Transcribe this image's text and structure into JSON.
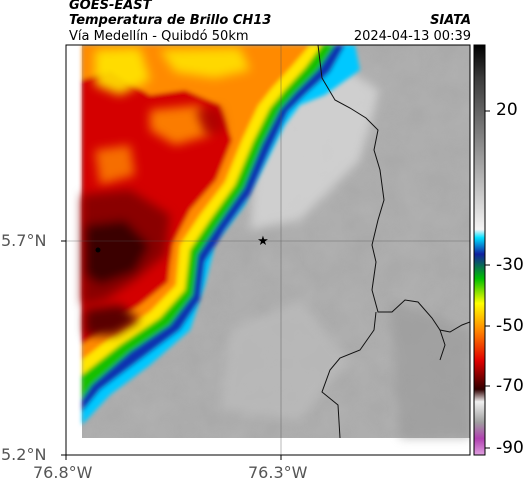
{
  "header": {
    "satellite": "GOES-EAST",
    "product": "Temperatura de Brillo CH13",
    "region": "Vía Medellín - Quibdó 50km",
    "agency": "SIATA",
    "timestamp": "2024-04-13 00:39"
  },
  "map": {
    "lat_labels": [
      "5.7°N",
      "5.2°N"
    ],
    "lon_labels": [
      "76.8°W",
      "76.3°W"
    ],
    "marker_icon": "star-marker-icon",
    "grid": true
  },
  "colorbar": {
    "ticks": [
      "20",
      "-30",
      "-50",
      "-70",
      "-90"
    ]
  },
  "colors": {
    "cold_core": "#2a0000",
    "red": "#d40000",
    "orange": "#ff8a00",
    "yellow": "#ffe600",
    "green": "#16c000",
    "blue": "#1030b0",
    "cyan": "#00c8ff",
    "warm_gray": "#a8a8a8"
  }
}
